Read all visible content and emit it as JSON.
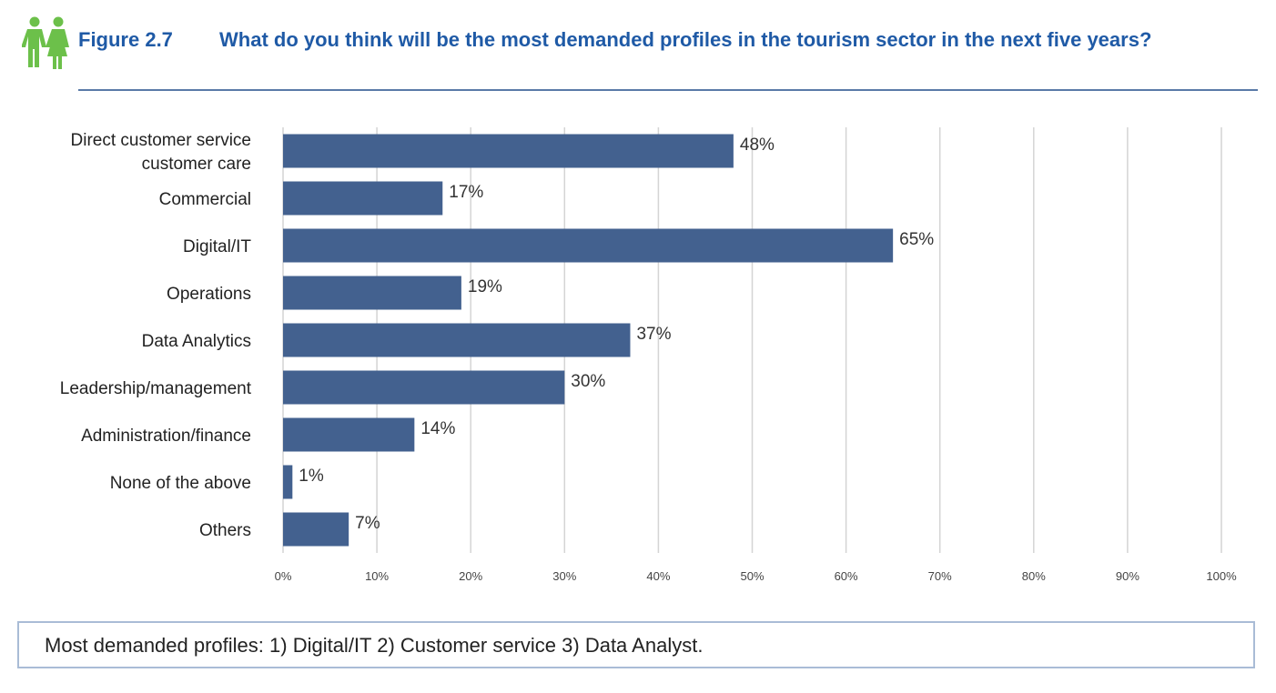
{
  "header": {
    "figure_label": "Figure 2.7",
    "title": "What do you think will be the most demanded profiles in the tourism sector in the next five years?",
    "icon": "people-icon",
    "accent_color": "#1f5aa6",
    "icon_color": "#6cc04a"
  },
  "chart_data": {
    "type": "bar",
    "orientation": "horizontal",
    "title": "",
    "xlabel": "",
    "ylabel": "",
    "categories": [
      "Direct customer service\ncustomer care",
      "Commercial",
      "Digital/IT",
      "Operations",
      "Data Analytics",
      "Leadership/management",
      "Administration/finance",
      "None of the above",
      "Others"
    ],
    "values": [
      48,
      17,
      65,
      19,
      37,
      30,
      14,
      1,
      7
    ],
    "value_labels": [
      "48%",
      "17%",
      "65%",
      "19%",
      "37%",
      "30%",
      "14%",
      "1%",
      "7%"
    ],
    "xticks": [
      "0%",
      "10%",
      "20%",
      "30%",
      "40%",
      "50%",
      "60%",
      "70%",
      "80%",
      "90%",
      "100%"
    ],
    "xlim": [
      0,
      100
    ],
    "grid": true,
    "legend": "none",
    "bar_color": "#43618f",
    "grid_color": "#d4d4d4"
  },
  "note": {
    "text": "Most demanded profiles: 1) Digital/IT 2) Customer service 3) Data Analyst."
  }
}
